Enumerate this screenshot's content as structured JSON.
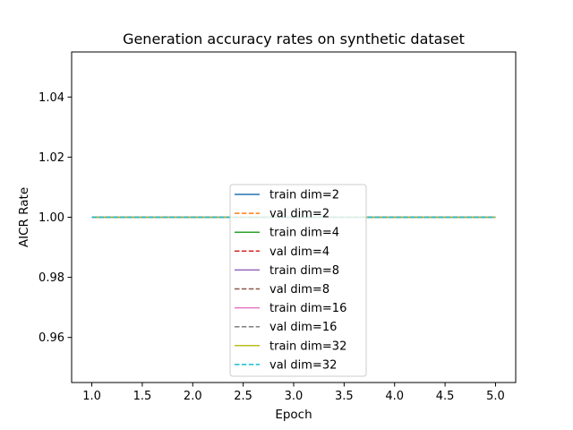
{
  "chart_data": {
    "type": "line",
    "title": "Generation accuracy rates on synthetic dataset",
    "xlabel": "Epoch",
    "ylabel": "AICR Rate",
    "xlim": [
      0.8,
      5.2
    ],
    "ylim": [
      0.945,
      1.055
    ],
    "x_ticks": [
      1.0,
      1.5,
      2.0,
      2.5,
      3.0,
      3.5,
      4.0,
      4.5,
      5.0
    ],
    "x_tick_labels": [
      "1.0",
      "1.5",
      "2.0",
      "2.5",
      "3.0",
      "3.5",
      "4.0",
      "4.5",
      "5.0"
    ],
    "y_ticks": [
      0.96,
      0.98,
      1.0,
      1.02,
      1.04
    ],
    "y_tick_labels": [
      "0.96",
      "0.98",
      "1.00",
      "1.02",
      "1.04"
    ],
    "grid": false,
    "legend_position": "center-bottom",
    "x": [
      1,
      2,
      3,
      4,
      5
    ],
    "series": [
      {
        "name": "train dim=2",
        "values": [
          1,
          1,
          1,
          1,
          1
        ],
        "color": "#1f77b4",
        "style": "solid"
      },
      {
        "name": "val dim=2",
        "values": [
          1,
          1,
          1,
          1,
          1
        ],
        "color": "#ff7f0e",
        "style": "dashed"
      },
      {
        "name": "train dim=4",
        "values": [
          1,
          1,
          1,
          1,
          1
        ],
        "color": "#2ca02c",
        "style": "solid"
      },
      {
        "name": "val dim=4",
        "values": [
          1,
          1,
          1,
          1,
          1
        ],
        "color": "#d62728",
        "style": "dashed"
      },
      {
        "name": "train dim=8",
        "values": [
          1,
          1,
          1,
          1,
          1
        ],
        "color": "#9467bd",
        "style": "solid"
      },
      {
        "name": "val dim=8",
        "values": [
          1,
          1,
          1,
          1,
          1
        ],
        "color": "#8c564b",
        "style": "dashed"
      },
      {
        "name": "train dim=16",
        "values": [
          1,
          1,
          1,
          1,
          1
        ],
        "color": "#e377c2",
        "style": "solid"
      },
      {
        "name": "val dim=16",
        "values": [
          1,
          1,
          1,
          1,
          1
        ],
        "color": "#7f7f7f",
        "style": "dashed"
      },
      {
        "name": "train dim=32",
        "values": [
          1,
          1,
          1,
          1,
          1
        ],
        "color": "#bcbd22",
        "style": "solid"
      },
      {
        "name": "val dim=32",
        "values": [
          1,
          1,
          1,
          1,
          1
        ],
        "color": "#17becf",
        "style": "dashed"
      }
    ]
  }
}
